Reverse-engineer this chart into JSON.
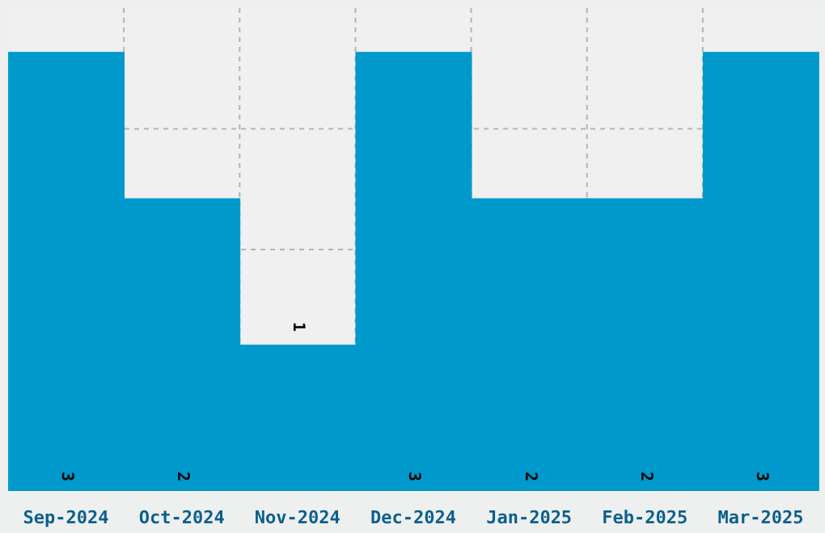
{
  "chart_data": {
    "type": "bar",
    "categories": [
      "Sep-2024",
      "Oct-2024",
      "Nov-2024",
      "Dec-2024",
      "Jan-2025",
      "Feb-2025",
      "Mar-2025"
    ],
    "values": [
      3,
      2,
      1,
      3,
      2,
      2,
      3
    ],
    "color": "#0099cc",
    "ylim": [
      0,
      3.3
    ],
    "tick_labels": "x",
    "grid": true,
    "data_labels": true,
    "legend": false
  }
}
